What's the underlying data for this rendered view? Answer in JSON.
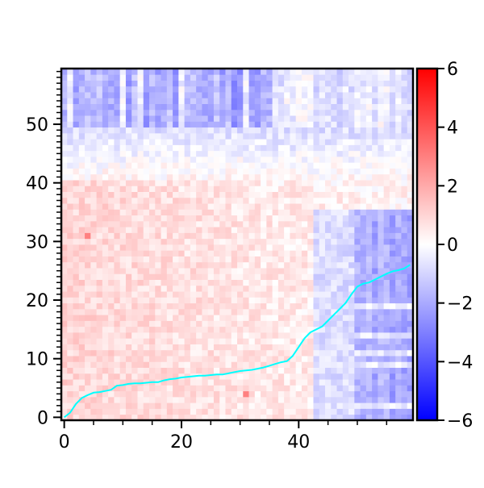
{
  "chart_data": {
    "type": "heatmap",
    "title": "",
    "xlabel": "",
    "ylabel": "",
    "grid_size": [
      60,
      60
    ],
    "xlim": [
      -0.5,
      59.5
    ],
    "ylim": [
      -0.5,
      59.5
    ],
    "x_ticks": [
      0,
      20,
      40
    ],
    "x_tick_labels": [
      "0",
      "20",
      "40"
    ],
    "y_ticks": [
      0,
      10,
      20,
      30,
      40,
      50
    ],
    "y_tick_labels": [
      "0",
      "10",
      "20",
      "30",
      "40",
      "50"
    ],
    "colormap": "bwr",
    "color_range": [
      -6,
      6
    ],
    "colorbar_ticks": [
      -6,
      -4,
      -2,
      0,
      2,
      4,
      6
    ],
    "colorbar_tick_labels": [
      "−6",
      "−4",
      "−2",
      "0",
      "2",
      "4",
      "6"
    ],
    "value_pattern": {
      "lower_left_region": 1.0,
      "top_band_rows_from": 50,
      "top_band_value": -1.8,
      "right_block_cols_from": 50,
      "right_block_value": -2.0,
      "hot_cells": [
        {
          "x": 4,
          "y": 31,
          "value": 3.0
        },
        {
          "x": 31,
          "y": 4,
          "value": 3.0
        }
      ]
    },
    "series": [
      {
        "type": "line",
        "color": "#00ffff",
        "x": [
          0,
          1,
          2,
          3,
          4,
          5,
          6,
          7,
          8,
          9,
          10,
          11,
          12,
          13,
          14,
          15,
          16,
          17,
          18,
          19,
          20,
          21,
          22,
          23,
          24,
          25,
          26,
          27,
          28,
          29,
          30,
          31,
          32,
          33,
          34,
          35,
          36,
          37,
          38,
          39,
          40,
          41,
          42,
          43,
          44,
          45,
          46,
          47,
          48,
          49,
          50,
          51,
          52,
          53,
          54,
          55,
          56,
          57,
          58,
          59
        ],
        "y": [
          0,
          0.8,
          2.3,
          3.3,
          3.8,
          4.2,
          4.3,
          4.5,
          4.7,
          5.4,
          5.5,
          5.7,
          5.8,
          5.8,
          5.9,
          6.0,
          6.0,
          6.3,
          6.5,
          6.6,
          6.8,
          6.9,
          7.0,
          7.1,
          7.1,
          7.2,
          7.3,
          7.3,
          7.5,
          7.7,
          7.9,
          8.0,
          8.1,
          8.3,
          8.5,
          8.8,
          9.1,
          9.4,
          9.6,
          10.5,
          12.0,
          13.5,
          14.5,
          15.0,
          15.5,
          16.5,
          17.5,
          18.5,
          19.5,
          21.0,
          22.3,
          22.8,
          23.0,
          23.5,
          24.0,
          24.5,
          24.9,
          25.1,
          25.4,
          26.0
        ]
      }
    ]
  }
}
